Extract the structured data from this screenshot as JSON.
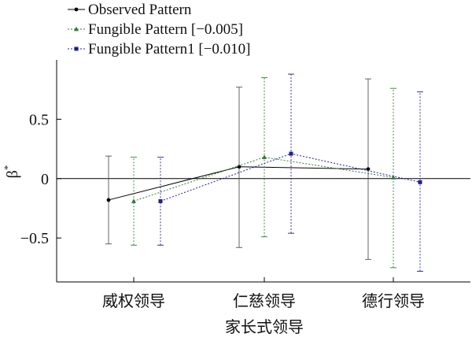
{
  "chart_data": {
    "type": "errorbar",
    "title": "",
    "xlabel": "家长式领导",
    "ylabel": "β*",
    "ylabel_base": "β",
    "ylabel_sup": "*",
    "categories": [
      "威权领导",
      "仁慈领导",
      "德行领导"
    ],
    "ylim": [
      -0.87,
      1.0
    ],
    "yticks": [
      -0.5,
      0,
      0.5
    ],
    "ytick_labels": [
      "−0.5",
      "0",
      "0.5"
    ],
    "zero_line": true,
    "grid": false,
    "legend_position": "top-left, outside plot",
    "series": [
      {
        "name": "Observed Pattern",
        "color": "#000000",
        "line_style": "solid",
        "marker": "circle",
        "values": [
          -0.18,
          0.1,
          0.08
        ],
        "lower": [
          -0.55,
          -0.58,
          -0.68
        ],
        "upper": [
          0.19,
          0.77,
          0.84
        ]
      },
      {
        "name": "Fungible Pattern [−0.005]",
        "color": "#2e7d32",
        "line_style": "dotted",
        "marker": "triangle",
        "values": [
          -0.19,
          0.18,
          0.01
        ],
        "lower": [
          -0.56,
          -0.49,
          -0.75
        ],
        "upper": [
          0.18,
          0.85,
          0.76
        ]
      },
      {
        "name": "Fungible Pattern1 [−0.010]",
        "color": "#1f1f8f",
        "line_style": "dotted",
        "marker": "square",
        "values": [
          -0.19,
          0.21,
          -0.03
        ],
        "lower": [
          -0.56,
          -0.46,
          -0.78
        ],
        "upper": [
          0.18,
          0.88,
          0.73
        ]
      }
    ]
  }
}
